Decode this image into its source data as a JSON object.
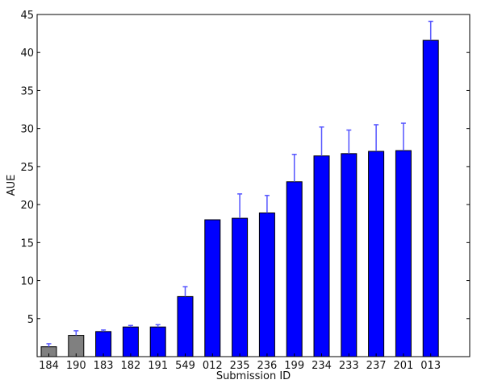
{
  "chart_data": {
    "type": "bar",
    "xlabel": "Submission ID",
    "ylabel": "AUE",
    "ylim": [
      0,
      45
    ],
    "yticks": [
      0,
      5,
      10,
      15,
      20,
      25,
      30,
      35,
      40,
      45
    ],
    "yticks_labels": [
      "",
      "5",
      "10",
      "15",
      "20",
      "25",
      "30",
      "35",
      "40",
      "45"
    ],
    "grid": false,
    "categories": [
      "184",
      "190",
      "183",
      "182",
      "191",
      "549",
      "012",
      "235",
      "236",
      "199",
      "234",
      "233",
      "237",
      "201",
      "013"
    ],
    "values": [
      1.3,
      2.8,
      3.3,
      3.9,
      3.9,
      7.9,
      18.0,
      18.2,
      18.9,
      23.0,
      26.4,
      26.7,
      27.0,
      27.1,
      41.6
    ],
    "errors": [
      0.4,
      0.6,
      0.2,
      0.2,
      0.3,
      1.3,
      0.0,
      3.2,
      2.3,
      3.6,
      3.8,
      3.1,
      3.5,
      3.6,
      2.5
    ],
    "colors": {
      "default": "#0000ff",
      "highlight": "#808080",
      "error": "#5555ff"
    },
    "highlight_index": [
      0,
      1
    ]
  }
}
